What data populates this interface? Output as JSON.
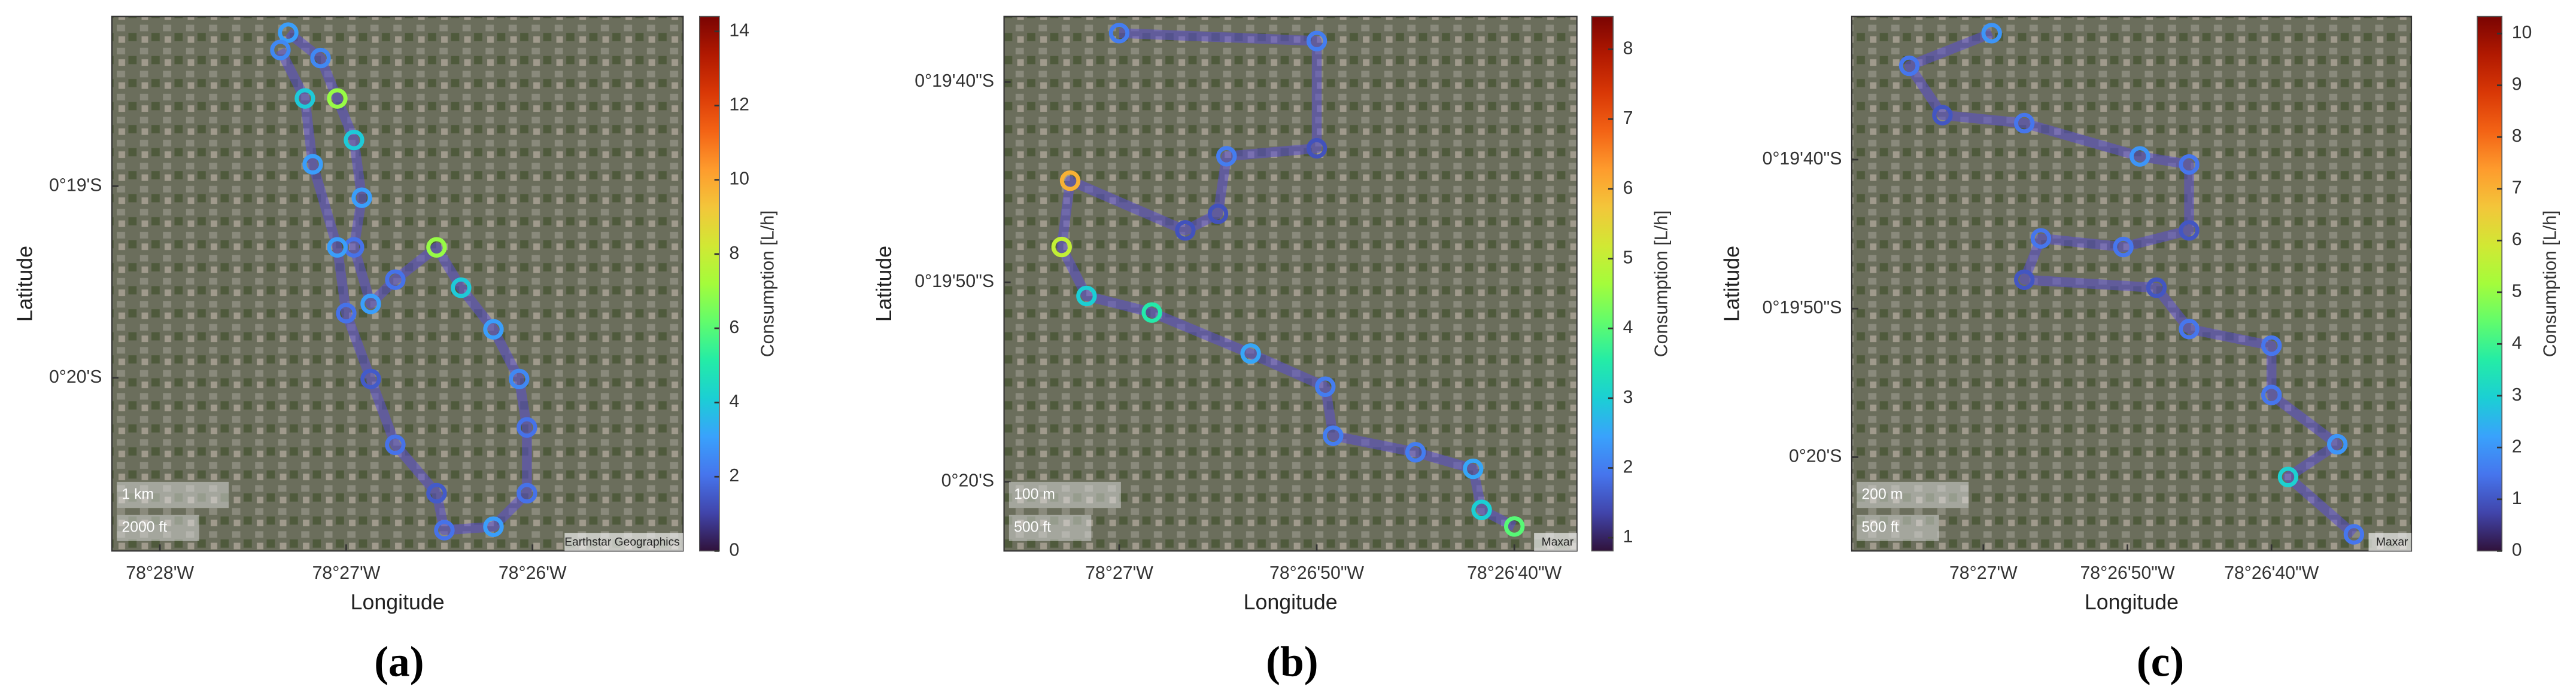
{
  "chart_data": [
    {
      "type": "scatter",
      "caption": "(a)",
      "xlabel": "Longitude",
      "ylabel": "Latitude",
      "colorbar_label": "Consumption [L/h]",
      "x": [
        -78.4552,
        -78.4523,
        -78.4508,
        -78.4493,
        -78.4486,
        -78.4493,
        -78.4478,
        -78.4456,
        -78.4419,
        -78.4397,
        -78.4368,
        -78.4345,
        -78.4338,
        -78.4338,
        -78.4368,
        -78.4412,
        -78.4419,
        -78.4456,
        -78.4478,
        -78.45,
        -78.4508,
        -78.453,
        -78.4537,
        -78.4559
      ],
      "y": [
        -0.3034,
        -0.3056,
        -0.3091,
        -0.3127,
        -0.3177,
        -0.322,
        -0.3269,
        -0.3248,
        -0.322,
        -0.3255,
        -0.3291,
        -0.3334,
        -0.3376,
        -0.3433,
        -0.3462,
        -0.3465,
        -0.3433,
        -0.3391,
        -0.3334,
        -0.3277,
        -0.322,
        -0.3148,
        -0.3091,
        -0.3049
      ],
      "values": [
        3,
        2.5,
        7,
        4,
        3,
        2,
        3,
        2,
        7,
        4,
        3,
        2.5,
        2,
        2,
        3,
        2,
        1.5,
        2,
        1.5,
        2,
        3,
        3,
        4,
        2.5
      ],
      "xlim": [
        -78.471,
        -78.4198
      ],
      "ylim": [
        -0.3483,
        -0.302
      ],
      "xticks": [
        {
          "value": -78.4667,
          "label": "78°28'W"
        },
        {
          "value": -78.45,
          "label": "78°27'W"
        },
        {
          "value": -78.4333,
          "label": "78°26'W"
        }
      ],
      "yticks": [
        {
          "value": -0.3167,
          "label": "0°19'S"
        },
        {
          "value": -0.3333,
          "label": "0°20'S"
        }
      ],
      "clim": [
        0,
        14.4
      ],
      "cticks": [
        0,
        2,
        4,
        6,
        8,
        10,
        12,
        14
      ],
      "scalebar": [
        "1 km",
        "2000 ft"
      ],
      "attribution": "Earthstar Geographics"
    },
    {
      "type": "scatter",
      "caption": "(b)",
      "xlabel": "Longitude",
      "ylabel": "Latitude",
      "colorbar_label": "Consumption [L/h]",
      "x": [
        -78.45,
        -78.44722,
        -78.44722,
        -78.44849,
        -78.44861,
        -78.44907,
        -78.45069,
        -78.45081,
        -78.45046,
        -78.44954,
        -78.44815,
        -78.4471,
        -78.44699,
        -78.44583,
        -78.44502,
        -78.4449,
        -78.44444
      ],
      "y": [
        -0.3271,
        -0.32721,
        -0.3287,
        -0.32881,
        -0.32961,
        -0.32984,
        -0.32915,
        -0.33007,
        -0.33075,
        -0.33098,
        -0.33155,
        -0.33201,
        -0.33269,
        -0.33292,
        -0.33315,
        -0.33372,
        -0.33395
      ],
      "values": [
        2,
        2,
        1.5,
        2,
        1.5,
        1.5,
        6,
        5,
        3,
        3.5,
        2.5,
        2,
        2,
        2,
        2.5,
        3,
        4
      ],
      "xlim": [
        -78.45162,
        -78.44356
      ],
      "ylim": [
        -0.33429,
        -0.32687
      ],
      "xticks": [
        {
          "value": -78.45,
          "label": "78°27'W"
        },
        {
          "value": -78.44722,
          "label": "78°26'50\"W"
        },
        {
          "value": -78.44444,
          "label": "78°26'40\"W"
        }
      ],
      "yticks": [
        {
          "value": -0.32778,
          "label": "0°19'40\"S"
        },
        {
          "value": -0.33056,
          "label": "0°19'50\"S"
        },
        {
          "value": -0.33333,
          "label": "0°20'S"
        }
      ],
      "clim": [
        0.81,
        8.47
      ],
      "cticks": [
        1,
        2,
        3,
        4,
        5,
        6,
        7,
        8
      ],
      "scalebar": [
        "100 m",
        "500 ft"
      ],
      "attribution": "Maxar"
    },
    {
      "type": "scatter",
      "caption": "(c)",
      "xlabel": "Longitude",
      "ylabel": "Latitude",
      "colorbar_label": "Consumption [L/h]",
      "x": [
        -78.44984,
        -78.45143,
        -78.45079,
        -78.44921,
        -78.44698,
        -78.44603,
        -78.44603,
        -78.4473,
        -78.44889,
        -78.44921,
        -78.44666,
        -78.44603,
        -78.44444,
        -78.44444,
        -78.44317,
        -78.44412,
        -78.44285
      ],
      "y": [
        -0.32542,
        -0.32603,
        -0.32695,
        -0.3271,
        -0.32772,
        -0.32787,
        -0.3291,
        -0.32941,
        -0.32925,
        -0.33002,
        -0.33017,
        -0.33094,
        -0.33125,
        -0.33217,
        -0.33309,
        -0.3337,
        -0.33477
      ],
      "values": [
        2,
        1.5,
        1,
        1.5,
        2,
        1.5,
        1,
        1.5,
        1.5,
        1,
        1,
        1.5,
        1.5,
        1.5,
        2,
        3,
        1.5
      ],
      "xlim": [
        -78.45254,
        -78.44174
      ],
      "ylim": [
        -0.33508,
        -0.32511
      ],
      "xticks": [
        {
          "value": -78.45,
          "label": "78°27'W"
        },
        {
          "value": -78.44722,
          "label": "78°26'50\"W"
        },
        {
          "value": -78.44444,
          "label": "78°26'40\"W"
        }
      ],
      "yticks": [
        {
          "value": -0.32778,
          "label": "0°19'40\"S"
        },
        {
          "value": -0.33056,
          "label": "0°19'50\"S"
        },
        {
          "value": -0.33333,
          "label": "0°20'S"
        }
      ],
      "clim": [
        0,
        10.33
      ],
      "cticks": [
        0,
        1,
        2,
        3,
        4,
        5,
        6,
        7,
        8,
        9,
        10
      ],
      "scalebar": [
        "200 m",
        "500 ft"
      ],
      "attribution": "Maxar"
    }
  ],
  "colormap": [
    "#30123b",
    "#4145ab",
    "#4675ed",
    "#39a2fc",
    "#1bcfd4",
    "#24eca6",
    "#61fc6c",
    "#a4fc3b",
    "#d1e834",
    "#f3c63a",
    "#fe9b2d",
    "#f36315",
    "#d93806",
    "#b11901",
    "#7a0402"
  ]
}
